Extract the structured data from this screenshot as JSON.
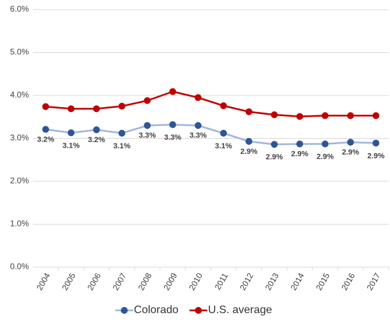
{
  "chart_data": {
    "type": "line",
    "categories": [
      "2004",
      "2005",
      "2006",
      "2007",
      "2008",
      "2009",
      "2010",
      "2011",
      "2012",
      "2013",
      "2014",
      "2015",
      "2016",
      "2017"
    ],
    "series": [
      {
        "name": "Colorado",
        "color": "#2f5597",
        "line_color": "#9fb4e0",
        "values": [
          3.21,
          3.13,
          3.2,
          3.12,
          3.3,
          3.32,
          3.3,
          3.12,
          2.93,
          2.86,
          2.87,
          2.87,
          2.91,
          2.89
        ],
        "value_labels": [
          "3.2%",
          "3.1%",
          "3.2%",
          "3.1%",
          "3.3%",
          "3.3%",
          "3.3%",
          "3.1%",
          "2.9%",
          "2.9%",
          "2.9%",
          "2.9%",
          "2.9%",
          "2.9%"
        ]
      },
      {
        "name": "U.S. average",
        "color": "#c00000",
        "line_color": "#c00000",
        "values": [
          3.74,
          3.69,
          3.69,
          3.75,
          3.88,
          4.09,
          3.95,
          3.76,
          3.62,
          3.55,
          3.51,
          3.53,
          3.53,
          3.53
        ]
      }
    ],
    "ylim": [
      0,
      6
    ],
    "yticks": [
      {
        "value": 0,
        "label": "0.0%"
      },
      {
        "value": 1,
        "label": "1.0%"
      },
      {
        "value": 2,
        "label": "2.0%"
      },
      {
        "value": 3,
        "label": "3.0%"
      },
      {
        "value": 4,
        "label": "4.0%"
      },
      {
        "value": 5,
        "label": "5.0%"
      },
      {
        "value": 6,
        "label": "6.0%"
      }
    ],
    "grid": true,
    "legend": "bottom"
  }
}
